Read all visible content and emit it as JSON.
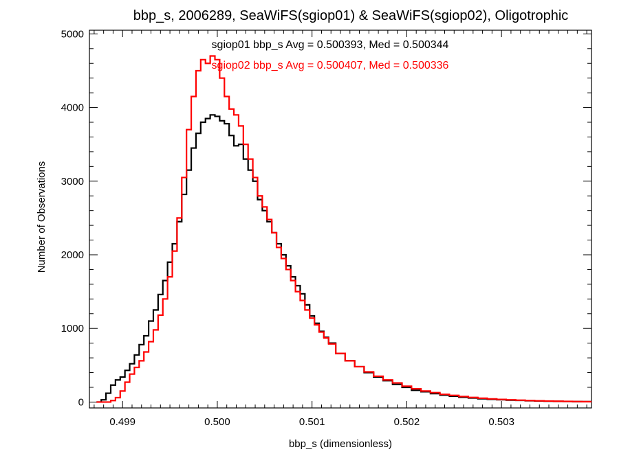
{
  "chart_data": {
    "type": "line",
    "title": "bbp_s, 2006289, SeaWiFS(sgiop01) & SeaWiFS(sgiop02), Oligotrophic",
    "xlabel": "bbp_s (dimensionless)",
    "ylabel": "Number of Observations",
    "xlim": [
      0.49865,
      0.50395
    ],
    "ylim": [
      -80,
      5050
    ],
    "x_ticks": [
      0.499,
      0.5,
      0.501,
      0.502,
      0.503
    ],
    "x_tick_labels": [
      "0.499",
      "0.500",
      "0.501",
      "0.502",
      "0.503"
    ],
    "y_ticks": [
      0,
      1000,
      2000,
      3000,
      4000,
      5000
    ],
    "y_tick_labels": [
      "0",
      "1000",
      "2000",
      "3000",
      "4000",
      "5000"
    ],
    "grid": false,
    "legend": "top-center",
    "annotations": [
      {
        "text": "sgiop01 bbp_s Avg = 0.500393, Med = 0.500344",
        "color": "#000000"
      },
      {
        "text": "sgiop02 bbp_s Avg = 0.500407, Med = 0.500336",
        "color": "#ff0000"
      }
    ],
    "series": [
      {
        "name": "sgiop01",
        "color": "#000000",
        "x": [
          0.49875,
          0.4988,
          0.49885,
          0.4989,
          0.49895,
          0.499,
          0.49905,
          0.4991,
          0.49915,
          0.4992,
          0.49925,
          0.4993,
          0.49935,
          0.4994,
          0.49945,
          0.4995,
          0.49955,
          0.4996,
          0.49965,
          0.4997,
          0.49975,
          0.4998,
          0.49985,
          0.4999,
          0.49995,
          0.5,
          0.50005,
          0.5001,
          0.50015,
          0.5002,
          0.50025,
          0.5003,
          0.50035,
          0.5004,
          0.50045,
          0.5005,
          0.50055,
          0.5006,
          0.50065,
          0.5007,
          0.50075,
          0.5008,
          0.50085,
          0.5009,
          0.50095,
          0.501,
          0.50105,
          0.5011,
          0.50115,
          0.5012,
          0.5013,
          0.5014,
          0.5015,
          0.5016,
          0.5017,
          0.5018,
          0.5019,
          0.502,
          0.5021,
          0.5022,
          0.5023,
          0.5024,
          0.5025,
          0.5026,
          0.5027,
          0.5028,
          0.5029,
          0.503,
          0.5031,
          0.5032,
          0.5033,
          0.5034,
          0.5035,
          0.5036,
          0.5037,
          0.5038,
          0.5039
        ],
        "values": [
          0,
          30,
          120,
          230,
          300,
          340,
          430,
          520,
          640,
          780,
          900,
          1100,
          1250,
          1460,
          1650,
          1900,
          2150,
          2450,
          2820,
          3150,
          3450,
          3650,
          3800,
          3850,
          3900,
          3880,
          3820,
          3780,
          3620,
          3480,
          3500,
          3300,
          3150,
          3000,
          2750,
          2600,
          2450,
          2300,
          2150,
          2000,
          1850,
          1700,
          1580,
          1470,
          1320,
          1170,
          1070,
          960,
          880,
          800,
          660,
          560,
          480,
          400,
          340,
          290,
          240,
          200,
          160,
          140,
          115,
          95,
          80,
          65,
          55,
          45,
          38,
          32,
          26,
          22,
          18,
          15,
          12,
          10,
          8,
          6,
          5
        ]
      },
      {
        "name": "sgiop02",
        "color": "#ff0000",
        "x": [
          0.49875,
          0.4988,
          0.49885,
          0.4989,
          0.49895,
          0.499,
          0.49905,
          0.4991,
          0.49915,
          0.4992,
          0.49925,
          0.4993,
          0.49935,
          0.4994,
          0.49945,
          0.4995,
          0.49955,
          0.4996,
          0.49965,
          0.4997,
          0.49975,
          0.4998,
          0.49985,
          0.4999,
          0.49995,
          0.5,
          0.50005,
          0.5001,
          0.50015,
          0.5002,
          0.50025,
          0.5003,
          0.50035,
          0.5004,
          0.50045,
          0.5005,
          0.50055,
          0.5006,
          0.50065,
          0.5007,
          0.50075,
          0.5008,
          0.50085,
          0.5009,
          0.50095,
          0.501,
          0.50105,
          0.5011,
          0.50115,
          0.5012,
          0.5013,
          0.5014,
          0.5015,
          0.5016,
          0.5017,
          0.5018,
          0.5019,
          0.502,
          0.5021,
          0.5022,
          0.5023,
          0.5024,
          0.5025,
          0.5026,
          0.5027,
          0.5028,
          0.5029,
          0.503,
          0.5031,
          0.5032,
          0.5033,
          0.5034,
          0.5035,
          0.5036,
          0.5037,
          0.5038,
          0.5039
        ],
        "values": [
          0,
          0,
          0,
          20,
          60,
          150,
          270,
          380,
          470,
          560,
          680,
          820,
          980,
          1180,
          1400,
          1700,
          2050,
          2500,
          3050,
          3700,
          4150,
          4500,
          4650,
          4600,
          4700,
          4650,
          4400,
          4150,
          3980,
          3900,
          3750,
          3500,
          3300,
          3050,
          2800,
          2650,
          2480,
          2300,
          2100,
          1950,
          1800,
          1650,
          1500,
          1380,
          1250,
          1140,
          1050,
          950,
          870,
          790,
          660,
          560,
          480,
          410,
          350,
          300,
          260,
          215,
          180,
          150,
          128,
          105,
          90,
          75,
          62,
          52,
          43,
          36,
          30,
          25,
          20,
          17,
          14,
          11,
          9,
          7,
          5
        ]
      }
    ]
  }
}
